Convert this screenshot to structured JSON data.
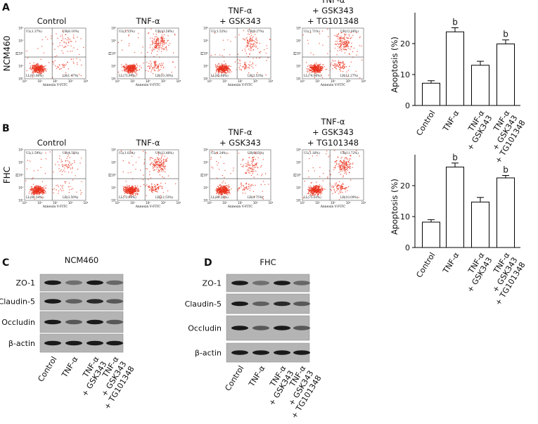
{
  "panels": [
    "A",
    "B",
    "C",
    "D"
  ],
  "flow_cytometry": {
    "x_label": "Annexin V-FITC",
    "y_label": "PI",
    "ticks": [
      "10⁰",
      "10¹",
      "10²",
      "10³",
      "10⁴"
    ],
    "rows": [
      {
        "label": "NCM460",
        "plots": [
          {
            "title": "Control",
            "quadrants": [
              "UL(1.37%)",
              "UR(6.10%)",
              "LL(91.06%)",
              "LR(1.47%)"
            ]
          },
          {
            "title": "TNF-α",
            "quadrants": [
              "UL(2.15%)",
              "UR(13.56%)",
              "LL(73.99%)",
              "LR(10.30%)"
            ]
          },
          {
            "title": "TNF-α\n+ GSK343",
            "quadrants": [
              "UL(1.52%)",
              "UR(9.27%)",
              "LL(85.68%)",
              "LR(3.53%)"
            ]
          },
          {
            "title": "TNF-α\n+ GSK343\n+ TG101348",
            "quadrants": [
              "UL(1.71%)",
              "UR(12.06%)",
              "LL(74.96%)",
              "LR(11.27%)"
            ]
          }
        ]
      },
      {
        "label": "FHC",
        "plots": [
          {
            "title": "Control",
            "quadrants": [
              "UL(1.59%)",
              "UR(4.58%)",
              "LL(90.24%)",
              "LR(3.59%)"
            ]
          },
          {
            "title": "TNF-α",
            "quadrants": [
              "UL(1.02%)",
              "UR(13.46%)",
              "LL(72.99%)",
              "LR(12.53%)"
            ]
          },
          {
            "title": "TNF-α\n+ GSK343",
            "quadrants": [
              "UL(1.24%)",
              "UR(9.03%)",
              "LL(80.26%)",
              "LR(4.75%)"
            ]
          },
          {
            "title": "TNF-α\n+ GSK343\n+ TG101348",
            "quadrants": [
              "UL(1.16%)",
              "UR(11.72%)",
              "LL(75.03%)",
              "LR(10.09%)"
            ]
          }
        ]
      }
    ]
  },
  "chart_data": [
    {
      "type": "bar",
      "ylabel": "Apoptosis (%)",
      "categories": [
        "Control",
        "TNF-α",
        "TNF-α\n+ GSK343",
        "TNF-α\n+ GSK343\n+ TG101348"
      ],
      "values": [
        7.2,
        23.8,
        13,
        19.9
      ],
      "errors": [
        0.8,
        1.3,
        1.3,
        1.3
      ],
      "annotations": [
        null,
        "b",
        null,
        "b"
      ],
      "color": "#ffffff",
      "edgecolor": "#000000",
      "ylim": [
        0,
        30
      ],
      "yticks": [
        0,
        10,
        20
      ]
    },
    {
      "type": "bar",
      "ylabel": "Apoptosis (%)",
      "categories": [
        "Control",
        "TNF-α",
        "TNF-α\n+ GSK343",
        "TNF-α\n+ GSK343\n+ TG101348"
      ],
      "values": [
        8.2,
        26,
        14.7,
        22.5
      ],
      "errors": [
        0.8,
        1.3,
        1.5,
        0.8
      ],
      "annotations": [
        null,
        "b",
        null,
        "b"
      ],
      "color": "#ffffff",
      "edgecolor": "#000000",
      "ylim": [
        0,
        30
      ],
      "yticks": [
        0,
        10,
        20
      ]
    }
  ],
  "western_blots": [
    {
      "title": "NCM460",
      "bands": [
        "ZO-1",
        "Claudin-5",
        "Occludin",
        "β-actin"
      ],
      "lanes": [
        "Control",
        "TNF-α",
        "TNF-α\n+ GSK343",
        "TNF-α\n+ GSK343\n+ TG101348"
      ]
    },
    {
      "title": "FHC",
      "bands": [
        "ZO-1",
        "Claudin-5",
        "Occludin",
        "β-actin"
      ],
      "lanes": [
        "Control",
        "TNF-α",
        "TNF-α\n+ GSK343",
        "TNF-α\n+ GSK343\n+ TG101348"
      ]
    }
  ]
}
